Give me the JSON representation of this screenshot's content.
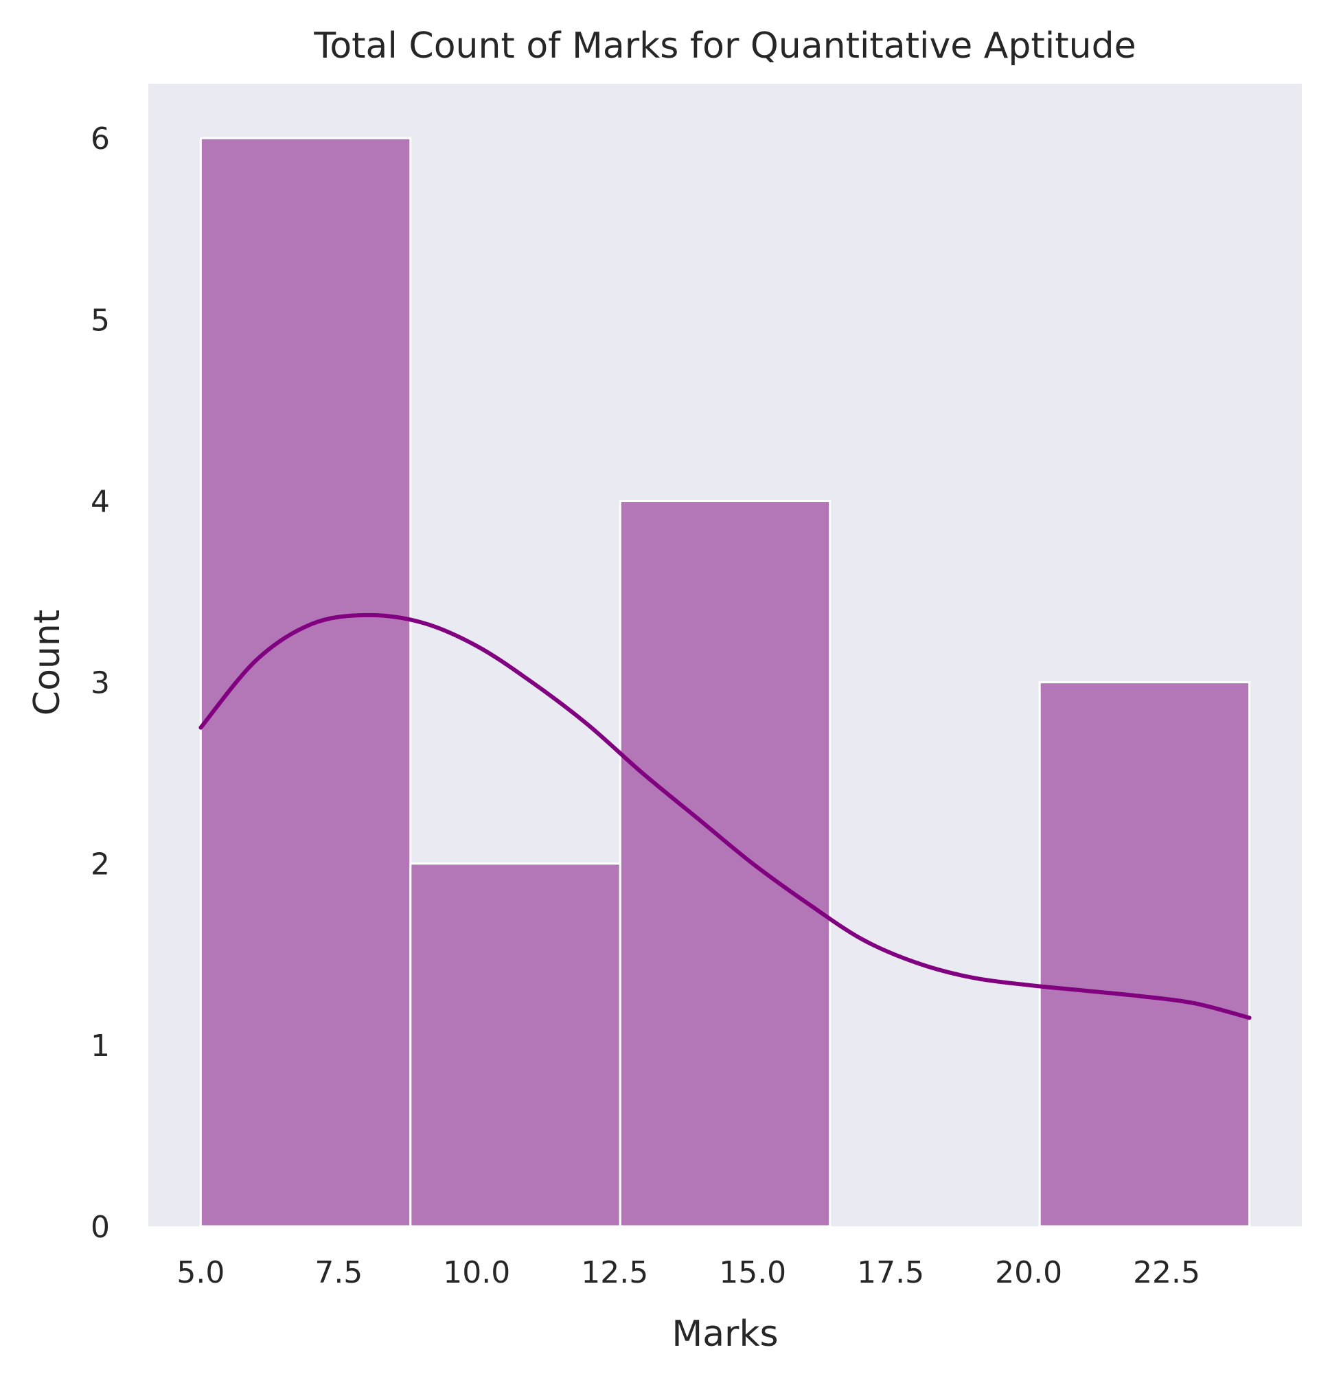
{
  "chart_data": {
    "type": "bar",
    "title": "Total Count of Marks for Quantitative Aptitude",
    "xlabel": "Marks",
    "ylabel": "Count",
    "bins": [
      {
        "start": 5.0,
        "end": 8.8,
        "count": 6
      },
      {
        "start": 8.8,
        "end": 12.6,
        "count": 2
      },
      {
        "start": 12.6,
        "end": 16.4,
        "count": 4
      },
      {
        "start": 16.4,
        "end": 20.2,
        "count": 0
      },
      {
        "start": 20.2,
        "end": 24.0,
        "count": 3
      }
    ],
    "kde": {
      "x": [
        5.0,
        6.0,
        7.0,
        8.0,
        9.0,
        10.0,
        11.0,
        12.0,
        13.0,
        14.0,
        15.0,
        16.0,
        17.0,
        18.0,
        19.0,
        20.0,
        21.0,
        22.0,
        23.0,
        24.0
      ],
      "y": [
        2.75,
        3.12,
        3.32,
        3.37,
        3.33,
        3.2,
        3.0,
        2.77,
        2.5,
        2.25,
        2.0,
        1.78,
        1.58,
        1.45,
        1.37,
        1.33,
        1.3,
        1.27,
        1.23,
        1.15
      ]
    },
    "xticks": [
      "5.0",
      "7.5",
      "10.0",
      "12.5",
      "15.0",
      "17.5",
      "20.0",
      "22.5"
    ],
    "yticks": [
      "0",
      "1",
      "2",
      "3",
      "4",
      "5",
      "6"
    ],
    "xlim": [
      4.05,
      24.95
    ],
    "ylim": [
      0,
      6.3
    ],
    "grid": false,
    "colors": {
      "bar_fill": "#b377b7",
      "bar_edge": "#ffffff",
      "kde_line": "#800080",
      "plot_background": "#eaeaf2",
      "text": "#262626"
    }
  }
}
